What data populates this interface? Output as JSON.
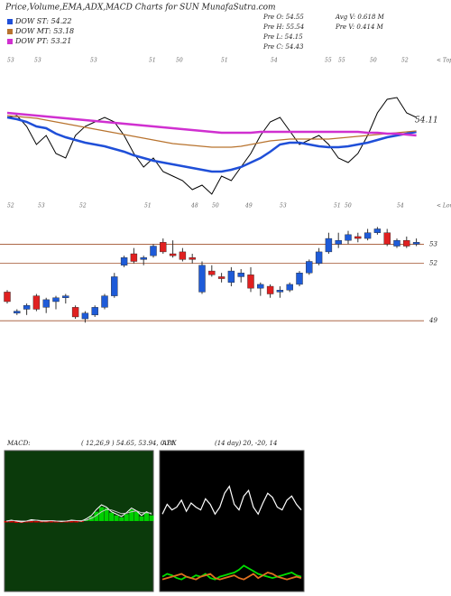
{
  "header": {
    "title": "Price,Volume,EMA,ADX,MACD Charts for SUN  MunafaSutra.com",
    "legend": [
      "DOW ST: 54.22",
      "DOW MT: 53.18",
      "DOW PT: 53.21"
    ],
    "stats": [
      "Pre  O: 54.55",
      "Pre  H: 55.54",
      "Pre  L: 54.15",
      "Pre  C: 54.43"
    ],
    "stats2": [
      "Avg V: 0.618 M",
      "Pre  V: 0.414  M"
    ]
  },
  "chart_data": [
    {
      "type": "line",
      "ylim": [
        50,
        57.75
      ],
      "series": [
        {
          "color": "#000000",
          "values": [
            54.25,
            54.35,
            53.75,
            52.75,
            53.25,
            52.25,
            52.0,
            53.25,
            53.75,
            54.0,
            54.25,
            54.0,
            53.25,
            52.25,
            51.5,
            52.0,
            51.25,
            51.0,
            50.75,
            50.25,
            50.5,
            50.0,
            51.0,
            50.75,
            51.5,
            52.25,
            53.25,
            54.0,
            54.25,
            53.5,
            52.75,
            53.0,
            53.25,
            52.75,
            52.0,
            51.75,
            52.25,
            53.25,
            54.5,
            55.25,
            55.35,
            54.5,
            54.25
          ]
        },
        {
          "color": "#1f4fd8",
          "values": [
            54.25,
            54.15,
            54.0,
            53.75,
            53.65,
            53.35,
            53.15,
            53.0,
            52.85,
            52.75,
            52.65,
            52.5,
            52.35,
            52.15,
            52.0,
            51.85,
            51.75,
            51.65,
            51.55,
            51.45,
            51.35,
            51.25,
            51.25,
            51.35,
            51.5,
            51.75,
            52.0,
            52.35,
            52.75,
            52.85,
            52.85,
            52.75,
            52.65,
            52.6,
            52.6,
            52.65,
            52.75,
            52.85,
            53.0,
            53.15,
            53.25,
            53.35,
            53.45
          ]
        },
        {
          "color": "#b8732e",
          "values": [
            54.35,
            54.3,
            54.25,
            54.2,
            54.1,
            54.0,
            53.9,
            53.8,
            53.7,
            53.6,
            53.5,
            53.4,
            53.3,
            53.2,
            53.1,
            53.0,
            52.9,
            52.8,
            52.75,
            52.7,
            52.65,
            52.6,
            52.6,
            52.6,
            52.65,
            52.75,
            52.85,
            52.95,
            53.0,
            53.05,
            53.05,
            53.05,
            53.05,
            53.05,
            53.1,
            53.15,
            53.2,
            53.25,
            53.3,
            53.35,
            53.4,
            53.45,
            53.5
          ]
        },
        {
          "color": "#d030d0",
          "values": [
            54.5,
            54.45,
            54.4,
            54.35,
            54.3,
            54.25,
            54.2,
            54.15,
            54.1,
            54.05,
            54.0,
            53.95,
            53.9,
            53.85,
            53.8,
            53.75,
            53.7,
            53.65,
            53.6,
            53.55,
            53.5,
            53.45,
            53.4,
            53.4,
            53.4,
            53.4,
            53.45,
            53.45,
            53.45,
            53.45,
            53.45,
            53.45,
            53.45,
            53.45,
            53.45,
            53.45,
            53.45,
            53.4,
            53.4,
            53.35,
            53.35,
            53.3,
            53.25
          ]
        }
      ],
      "annotations": [
        54.11
      ],
      "top_labels": [
        53,
        53,
        53,
        51,
        50,
        51,
        54,
        55,
        55,
        50,
        52
      ],
      "top_note": "< Tops",
      "bottom_labels": [
        52,
        53,
        52,
        51,
        48,
        50,
        49,
        53,
        51,
        50,
        54
      ],
      "bottom_note": "< Lows"
    },
    {
      "type": "candlestick",
      "ylim": [
        48.3,
        54.2
      ],
      "yticks": [
        53,
        52,
        49
      ],
      "level_color": "#a0522d",
      "up_color": "#1e5bd8",
      "down_color": "#e02020",
      "open": [
        50.5,
        49.4,
        49.6,
        50.3,
        49.7,
        50.0,
        50.2,
        49.7,
        49.1,
        49.3,
        49.7,
        50.3,
        51.9,
        52.5,
        52.2,
        52.4,
        53.1,
        52.5,
        52.6,
        52.3,
        50.5,
        51.6,
        51.3,
        51.0,
        51.3,
        51.4,
        50.7,
        50.8,
        50.5,
        50.6,
        50.9,
        51.5,
        52.0,
        52.6,
        53.0,
        53.2,
        53.4,
        53.3,
        53.6,
        53.6,
        52.9,
        53.2,
        53.0
      ],
      "high": [
        50.6,
        49.6,
        49.9,
        50.4,
        50.2,
        50.3,
        50.4,
        49.8,
        49.5,
        49.8,
        50.4,
        51.5,
        52.4,
        52.8,
        52.4,
        53.0,
        53.3,
        53.2,
        52.8,
        52.5,
        52.1,
        51.9,
        51.5,
        51.8,
        51.7,
        51.8,
        51.0,
        50.9,
        50.8,
        51.0,
        51.6,
        52.2,
        52.8,
        53.6,
        53.6,
        53.7,
        53.6,
        53.8,
        53.9,
        53.8,
        53.3,
        53.4,
        53.3
      ],
      "low": [
        49.9,
        49.3,
        49.3,
        49.5,
        49.4,
        49.6,
        49.9,
        49.1,
        48.9,
        49.2,
        49.6,
        50.2,
        51.8,
        52.0,
        51.9,
        52.3,
        52.5,
        52.3,
        52.1,
        52.0,
        50.4,
        51.3,
        51.0,
        50.8,
        51.0,
        50.5,
        50.3,
        50.2,
        50.2,
        50.5,
        50.8,
        51.4,
        51.9,
        52.5,
        52.8,
        53.0,
        53.1,
        53.2,
        53.5,
        52.9,
        52.8,
        52.8,
        52.9
      ],
      "close": [
        50.0,
        49.5,
        49.8,
        49.6,
        50.1,
        50.2,
        50.3,
        49.2,
        49.4,
        49.7,
        50.3,
        51.3,
        52.3,
        52.1,
        52.3,
        52.9,
        52.6,
        52.4,
        52.2,
        52.2,
        51.9,
        51.4,
        51.2,
        51.6,
        51.5,
        50.7,
        50.9,
        50.4,
        50.6,
        50.9,
        51.5,
        52.1,
        52.6,
        53.3,
        53.2,
        53.5,
        53.3,
        53.6,
        53.8,
        53.0,
        53.2,
        52.9,
        53.1
      ]
    },
    {
      "type": "macd",
      "title": "MACD:",
      "params": "( 12,26,9 ) 54.65, 53.94, 0.71",
      "ylim": [
        -1.5,
        1.5
      ],
      "up_color": "#00d000",
      "down_color": "#d00000",
      "series": [
        {
          "color": "#ffffff",
          "values": [
            0.0,
            0.02,
            0.0,
            -0.02,
            0.0,
            0.03,
            0.02,
            0.0,
            0.0,
            0.01,
            0.0,
            -0.01,
            0.0,
            0.02,
            0.01,
            0.0,
            0.05,
            0.12,
            0.25,
            0.35,
            0.3,
            0.2,
            0.15,
            0.1,
            0.18,
            0.28,
            0.22,
            0.12,
            0.2,
            0.15
          ]
        },
        {
          "color": "#c8c8c8",
          "values": [
            0.0,
            0.01,
            0.01,
            0.0,
            0.0,
            0.01,
            0.02,
            0.01,
            0.01,
            0.01,
            0.0,
            0.0,
            0.0,
            0.01,
            0.01,
            0.01,
            0.02,
            0.06,
            0.12,
            0.2,
            0.25,
            0.24,
            0.2,
            0.16,
            0.17,
            0.2,
            0.22,
            0.18,
            0.18,
            0.17
          ]
        }
      ],
      "histogram": [
        -0.03,
        -0.03,
        -0.04,
        -0.04,
        -0.03,
        -0.03,
        -0.03,
        -0.03,
        -0.03,
        -0.03,
        -0.03,
        -0.03,
        -0.03,
        -0.03,
        -0.03,
        -0.02,
        0.03,
        0.1,
        0.2,
        0.3,
        0.28,
        0.18,
        0.12,
        0.08,
        0.15,
        0.25,
        0.2,
        0.1,
        0.18,
        0.12
      ]
    },
    {
      "type": "adx",
      "title": "ADX",
      "params": "(14 day) 20, -20, 14",
      "ylim": [
        0,
        100
      ],
      "series": [
        {
          "color": "#ffffff",
          "values": [
            55,
            62,
            58,
            60,
            65,
            57,
            63,
            60,
            58,
            66,
            62,
            55,
            60,
            70,
            75,
            62,
            58,
            68,
            72,
            60,
            55,
            63,
            70,
            67,
            60,
            58,
            65,
            68,
            62,
            58
          ]
        },
        {
          "color": "#00e000",
          "values": [
            10,
            12,
            11,
            9,
            8,
            10,
            9,
            11,
            10,
            12,
            9,
            8,
            10,
            11,
            12,
            13,
            15,
            18,
            16,
            14,
            12,
            11,
            10,
            9,
            10,
            11,
            12,
            13,
            11,
            10
          ]
        },
        {
          "color": "#e07020",
          "values": [
            8,
            9,
            10,
            11,
            12,
            10,
            9,
            8,
            10,
            11,
            12,
            9,
            8,
            9,
            10,
            11,
            9,
            8,
            10,
            12,
            9,
            11,
            13,
            12,
            10,
            9,
            8,
            9,
            10,
            9
          ]
        }
      ]
    }
  ]
}
